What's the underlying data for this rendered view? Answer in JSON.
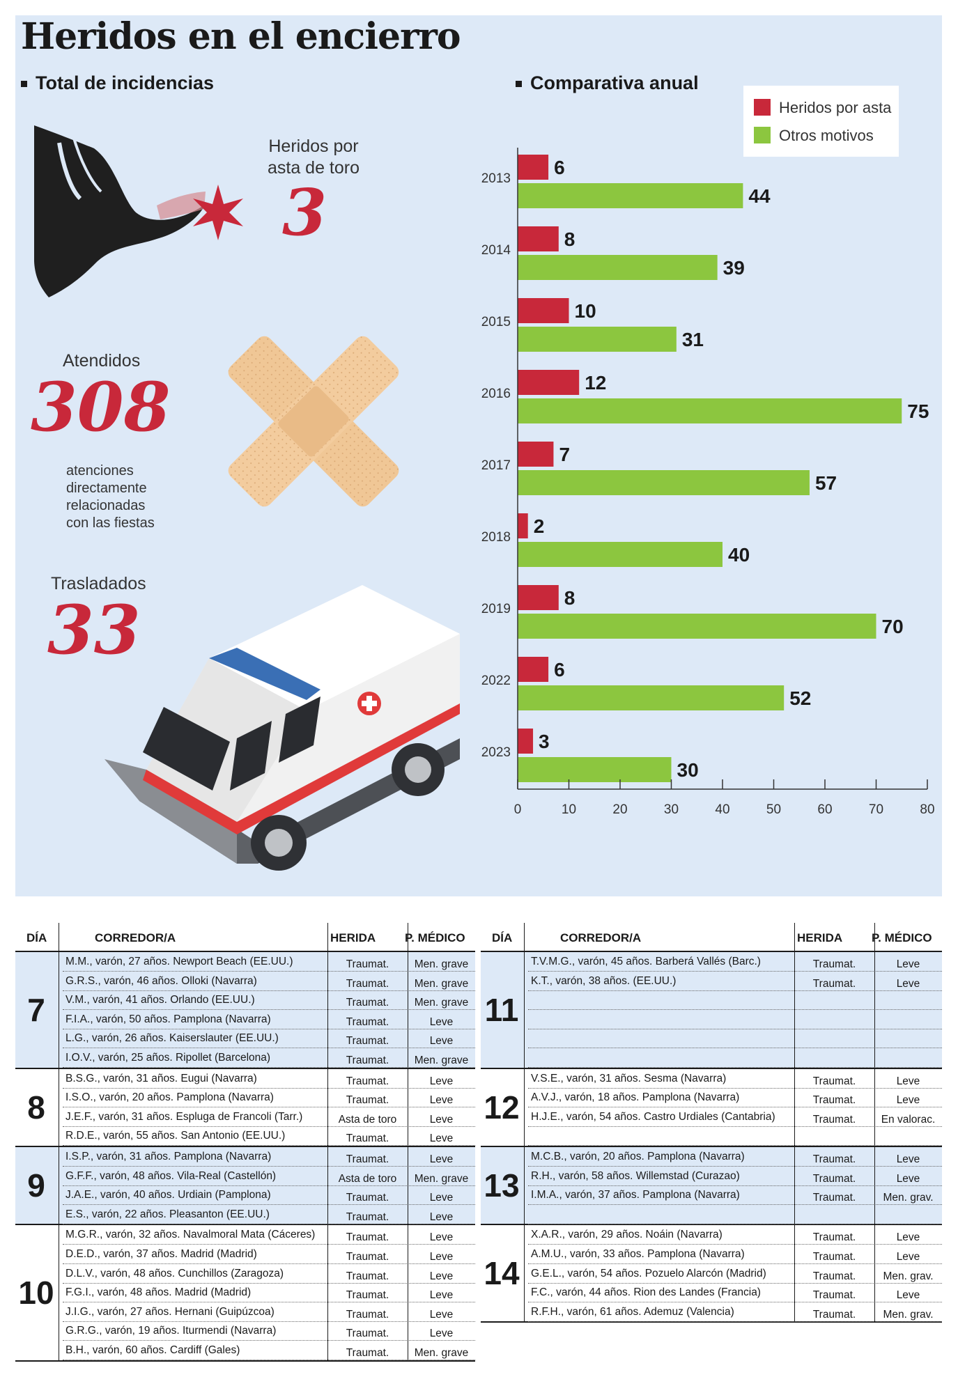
{
  "title": "Heridos en el encierro",
  "sections": {
    "total": "Total de incidencias",
    "comparativa": "Comparativa anual"
  },
  "stats": {
    "heridos_label_1": "Heridos por",
    "heridos_label_2": "asta de toro",
    "heridos_value": "3",
    "atendidos_label": "Atendidos",
    "atendidos_value": "308",
    "atendidos_note_1": "atenciones",
    "atendidos_note_2": "directamente",
    "atendidos_note_3": "relacionadas",
    "atendidos_note_4": "con las fiestas",
    "trasladados_label": "Trasladados",
    "trasladados_value": "33"
  },
  "colors": {
    "asta": "#c8283a",
    "otros": "#8cc63f",
    "panel": "#dde9f7"
  },
  "chart_data": {
    "type": "bar",
    "orientation": "horizontal",
    "categories": [
      "2013",
      "2014",
      "2015",
      "2016",
      "2017",
      "2018",
      "2019",
      "2022",
      "2023"
    ],
    "series": [
      {
        "name": "Heridos por asta",
        "values": [
          6,
          8,
          10,
          12,
          7,
          2,
          8,
          6,
          3
        ]
      },
      {
        "name": "Otros motivos",
        "values": [
          44,
          39,
          31,
          75,
          57,
          40,
          70,
          52,
          30
        ]
      }
    ],
    "xlim": [
      0,
      80
    ],
    "xticks": [
      "0",
      "10",
      "20",
      "30",
      "40",
      "50",
      "60",
      "70",
      "80"
    ],
    "legend": "top-right"
  },
  "table": {
    "headers": {
      "dia": "DÍA",
      "corredor": "CORREDOR/A",
      "herida": "HERIDA",
      "medico": "P. MÉDICO"
    },
    "left": [
      {
        "day": "7",
        "rows": [
          [
            "M.M., varón, 27 años. Newport Beach (EE.UU.)",
            "Traumat.",
            "Men. grave"
          ],
          [
            "G.R.S., varón, 46 años. Olloki (Navarra)",
            "Traumat.",
            "Men. grave"
          ],
          [
            "V.M., varón, 41 años. Orlando (EE.UU.)",
            "Traumat.",
            "Men. grave"
          ],
          [
            "F.I.A., varón, 50 años. Pamplona (Navarra)",
            "Traumat.",
            "Leve"
          ],
          [
            "L.G., varón, 26 años. Kaiserslauter (EE.UU.)",
            "Traumat.",
            "Leve"
          ],
          [
            "I.O.V., varón, 25 años. Ripollet (Barcelona)",
            "Traumat.",
            "Men. grave"
          ]
        ]
      },
      {
        "day": "8",
        "rows": [
          [
            "B.S.G., varón, 31 años. Eugui (Navarra)",
            "Traumat.",
            "Leve"
          ],
          [
            "I.S.O., varón, 20 años. Pamplona (Navarra)",
            "Traumat.",
            "Leve"
          ],
          [
            "J.E.F., varón, 31 años. Espluga de Francoli (Tarr.)",
            "Asta de toro",
            "Leve"
          ],
          [
            "R.D.E., varón, 55 años. San Antonio (EE.UU.)",
            "Traumat.",
            "Leve"
          ]
        ]
      },
      {
        "day": "9",
        "rows": [
          [
            "I.S.P., varón, 31 años. Pamplona (Navarra)",
            "Traumat.",
            "Leve"
          ],
          [
            "G.F.F., varón, 48 años. Vila-Real (Castellón)",
            "Asta de toro",
            "Men. grave"
          ],
          [
            "J.A.E., varón, 40 años. Urdiain (Pamplona)",
            "Traumat.",
            "Leve"
          ],
          [
            "E.S., varón, 22 años. Pleasanton (EE.UU.)",
            "Traumat.",
            "Leve"
          ]
        ]
      },
      {
        "day": "10",
        "rows": [
          [
            "M.G.R., varón, 32 años. Navalmoral Mata (Cáceres)",
            "Traumat.",
            "Leve"
          ],
          [
            "D.E.D., varón, 37 años. Madrid (Madrid)",
            "Traumat.",
            "Leve"
          ],
          [
            "D.L.V., varón, 48 años. Cunchillos (Zaragoza)",
            "Traumat.",
            "Leve"
          ],
          [
            "F.G.I., varón, 48 años.  Madrid (Madrid)",
            "Traumat.",
            "Leve"
          ],
          [
            "J.I.G., varón, 27 años. Hernani (Guipúzcoa)",
            "Traumat.",
            "Leve"
          ],
          [
            "G.R.G., varón, 19 años. Iturmendi (Navarra)",
            "Traumat.",
            "Leve"
          ],
          [
            "B.H., varón, 60 años. Cardiff (Gales)",
            "Traumat.",
            "Men. grave"
          ]
        ]
      }
    ],
    "right": [
      {
        "day": "11",
        "rows": [
          [
            "T.V.M.G., varón, 45 años. Barberá Vallés (Barc.)",
            "Traumat.",
            "Leve"
          ],
          [
            "K.T., varón, 38 años. (EE.UU.)",
            "Traumat.",
            "Leve"
          ],
          [
            "",
            "",
            ""
          ],
          [
            "",
            "",
            ""
          ],
          [
            "",
            "",
            ""
          ],
          [
            "",
            "",
            ""
          ]
        ]
      },
      {
        "day": "12",
        "rows": [
          [
            "V.S.E., varón, 31 años. Sesma (Navarra)",
            "Traumat.",
            "Leve"
          ],
          [
            "A.V.J., varón, 18 años. Pamplona (Navarra)",
            "Traumat.",
            "Leve"
          ],
          [
            "H.J.E., varón, 54 años. Castro Urdiales (Cantabria)",
            "Traumat.",
            "En valorac."
          ],
          [
            "",
            "",
            ""
          ]
        ]
      },
      {
        "day": "13",
        "rows": [
          [
            "M.C.B., varón, 20 años. Pamplona (Navarra)",
            "Traumat.",
            "Leve"
          ],
          [
            "R.H., varón, 58 años. Willemstad (Curazao)",
            "Traumat.",
            "Leve"
          ],
          [
            "I.M.A., varón, 37 años. Pamplona (Navarra)",
            "Traumat.",
            "Men. grav."
          ],
          [
            "",
            "",
            ""
          ]
        ]
      },
      {
        "day": "14",
        "rows": [
          [
            "X.A.R., varón, 29 años. Noáin (Navarra)",
            "Traumat.",
            "Leve"
          ],
          [
            "A.M.U., varón, 33 años. Pamplona (Navarra)",
            "Traumat.",
            "Leve"
          ],
          [
            "G.E.L., varón, 54 años. Pozuelo Alarcón (Madrid)",
            "Traumat.",
            "Men. grav."
          ],
          [
            "F.C., varón, 44 años. Rion des Landes (Francia)",
            "Traumat.",
            "Leve"
          ],
          [
            "R.F.H., varón, 61 años. Ademuz (Valencia)",
            "Traumat.",
            "Men. grav."
          ]
        ]
      }
    ]
  }
}
